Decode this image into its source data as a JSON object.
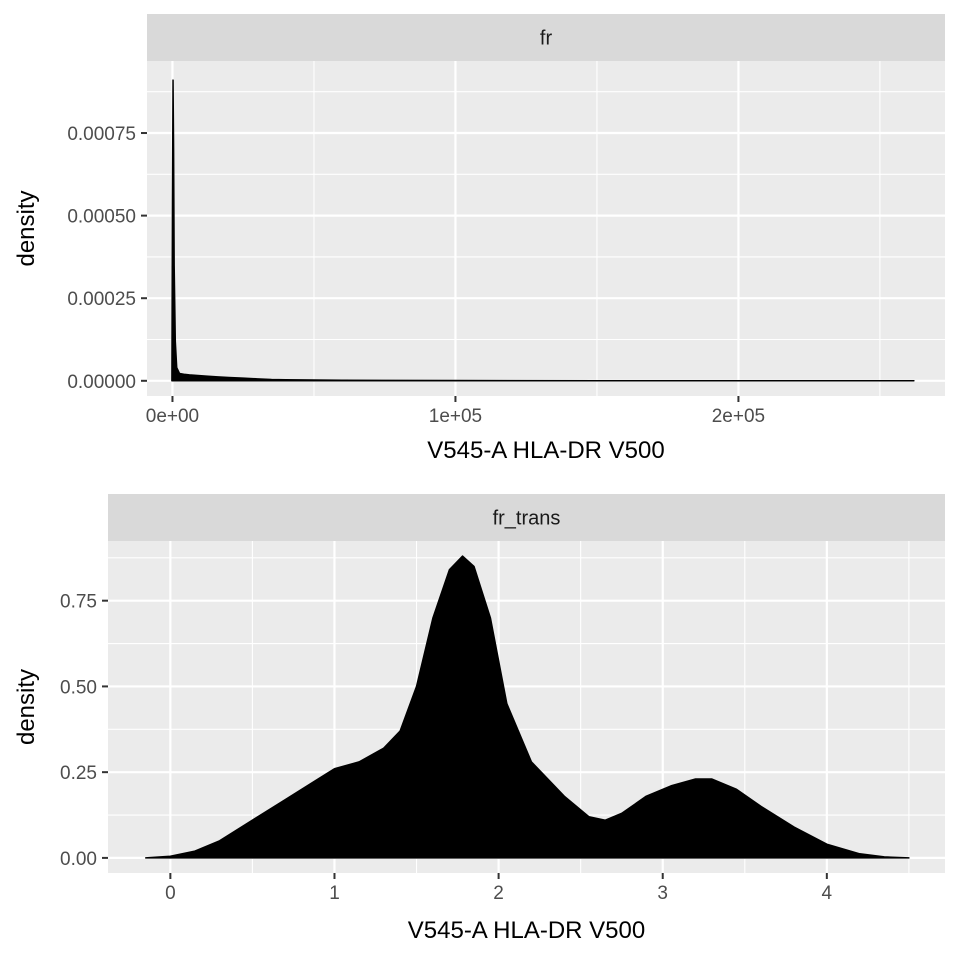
{
  "chart_data": [
    {
      "type": "area",
      "panel": "fr",
      "xlabel": "V545-A HLA-DR V500",
      "ylabel": "density",
      "xlim": [
        -9000,
        273000
      ],
      "ylim": [
        -4.6e-05,
        0.000968
      ],
      "x_ticks": [
        0,
        100000,
        200000
      ],
      "x_tick_labels": [
        "0e+00",
        "1e+05",
        "2e+05"
      ],
      "y_ticks": [
        0,
        0.00025,
        0.0005,
        0.00075
      ],
      "y_tick_labels": [
        "0.00000",
        "0.00025",
        "0.00050",
        "0.00075"
      ],
      "grid": true,
      "fill_color": "#000000",
      "series": [
        {
          "x": [
            -200,
            0,
            200,
            400,
            600,
            1000,
            1500,
            2500,
            4000,
            6000,
            9000,
            12000,
            16000,
            20000,
            25000,
            30000,
            35000,
            40000,
            60000,
            100000,
            150000,
            200000,
            262000
          ],
          "y": [
            0,
            0.00054,
            0.00091,
            0.0007,
            0.00035,
            0.00012,
            4e-05,
            2.2e-05,
            2e-05,
            1.8e-05,
            1.6e-05,
            1.4e-05,
            1.2e-05,
            1e-05,
            8e-06,
            6e-06,
            4e-06,
            3e-06,
            1.5e-06,
            8e-07,
            3e-07,
            1e-07,
            0
          ]
        }
      ]
    },
    {
      "type": "area",
      "panel": "fr_trans",
      "xlabel": "V545-A HLA-DR V500",
      "ylabel": "density",
      "xlim": [
        -0.38,
        4.72
      ],
      "ylim": [
        -0.044,
        0.924
      ],
      "x_ticks": [
        0,
        1,
        2,
        3,
        4
      ],
      "x_tick_labels": [
        "0",
        "1",
        "2",
        "3",
        "4"
      ],
      "y_ticks": [
        0,
        0.25,
        0.5,
        0.75
      ],
      "y_tick_labels": [
        "0.00",
        "0.25",
        "0.50",
        "0.75"
      ],
      "grid": true,
      "fill_color": "#000000",
      "series": [
        {
          "x": [
            -0.15,
            0,
            0.15,
            0.3,
            0.5,
            0.7,
            0.9,
            1.0,
            1.15,
            1.3,
            1.4,
            1.5,
            1.6,
            1.7,
            1.78,
            1.85,
            1.95,
            2.05,
            2.2,
            2.4,
            2.55,
            2.65,
            2.75,
            2.9,
            3.05,
            3.2,
            3.3,
            3.45,
            3.6,
            3.8,
            4.0,
            4.2,
            4.35,
            4.5
          ],
          "y": [
            0,
            0.005,
            0.02,
            0.05,
            0.11,
            0.17,
            0.23,
            0.26,
            0.28,
            0.32,
            0.37,
            0.5,
            0.7,
            0.84,
            0.88,
            0.85,
            0.7,
            0.45,
            0.28,
            0.18,
            0.12,
            0.11,
            0.13,
            0.18,
            0.21,
            0.23,
            0.23,
            0.2,
            0.15,
            0.09,
            0.04,
            0.012,
            0.003,
            0
          ]
        }
      ]
    }
  ]
}
